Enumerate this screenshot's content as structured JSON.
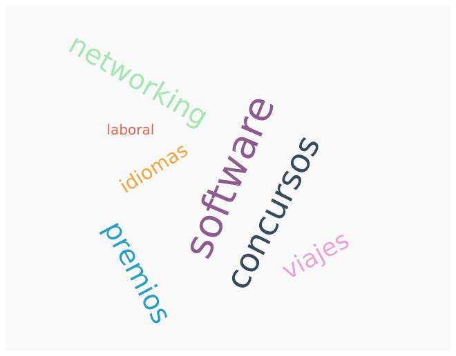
{
  "chart_data": {
    "type": "wordcloud",
    "words": [
      {
        "text": "software",
        "color": "#8e5b91"
      },
      {
        "text": "concursos",
        "color": "#34495e"
      },
      {
        "text": "networking",
        "color": "#a5e6b3"
      },
      {
        "text": "premios",
        "color": "#2a9fc6"
      },
      {
        "text": "viajes",
        "color": "#e9a5d9"
      },
      {
        "text": "idiomas",
        "color": "#f4a340"
      },
      {
        "text": "laboral",
        "color": "#e0644f"
      }
    ]
  }
}
